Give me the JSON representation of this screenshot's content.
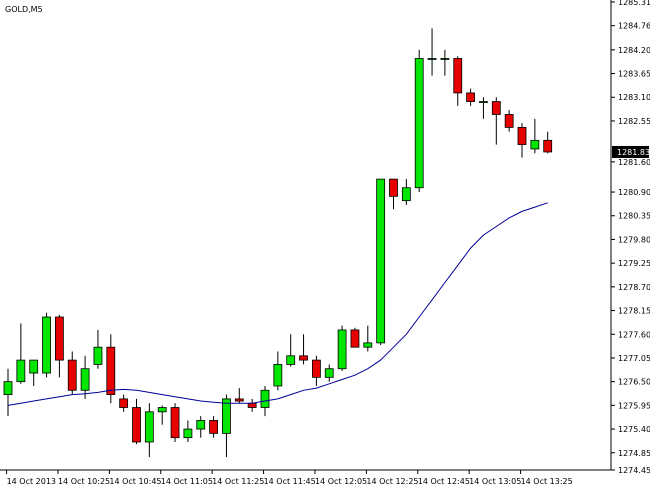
{
  "chart_data": {
    "type": "candlestick",
    "symbol_label": "GOLD,M5",
    "background": "#ffffff",
    "up_color": "#00e600",
    "down_color": "#e60000",
    "wick_color": "#000000",
    "ma_color": "#00009a",
    "ylim": [
      1274.45,
      1285.31
    ],
    "y_ticks": [
      "1285.31",
      "1284.76",
      "1284.20",
      "1283.65",
      "1283.10",
      "1282.55",
      "1281.60",
      "1280.90",
      "1280.35",
      "1279.80",
      "1279.25",
      "1278.70",
      "1278.15",
      "1277.60",
      "1277.05",
      "1276.50",
      "1275.95",
      "1275.40",
      "1274.85",
      "1274.45"
    ],
    "current_price": "1281.83",
    "x_labels": [
      "14 Oct 2013",
      "14 Oct 10:25",
      "14 Oct 10:45",
      "14 Oct 11:05",
      "14 Oct 11:25",
      "14 Oct 11:45",
      "14 Oct 12:05",
      "14 Oct 12:25",
      "14 Oct 12:45",
      "14 Oct 13:05",
      "14 Oct 13:25"
    ],
    "candles": [
      {
        "o": 1276.2,
        "h": 1276.8,
        "l": 1275.7,
        "c": 1276.5
      },
      {
        "o": 1276.5,
        "h": 1277.85,
        "l": 1276.45,
        "c": 1277.0
      },
      {
        "o": 1276.7,
        "h": 1277.0,
        "l": 1276.4,
        "c": 1277.0
      },
      {
        "o": 1276.7,
        "h": 1278.1,
        "l": 1276.6,
        "c": 1278.0
      },
      {
        "o": 1278.0,
        "h": 1278.05,
        "l": 1276.6,
        "c": 1277.0
      },
      {
        "o": 1277.0,
        "h": 1277.2,
        "l": 1276.2,
        "c": 1276.3
      },
      {
        "o": 1276.3,
        "h": 1277.1,
        "l": 1276.1,
        "c": 1276.8
      },
      {
        "o": 1276.9,
        "h": 1277.7,
        "l": 1276.8,
        "c": 1277.3
      },
      {
        "o": 1277.3,
        "h": 1277.6,
        "l": 1276.0,
        "c": 1276.2
      },
      {
        "o": 1276.1,
        "h": 1276.2,
        "l": 1275.8,
        "c": 1275.9
      },
      {
        "o": 1275.9,
        "h": 1276.1,
        "l": 1275.05,
        "c": 1275.1
      },
      {
        "o": 1275.1,
        "h": 1276.0,
        "l": 1274.75,
        "c": 1275.8
      },
      {
        "o": 1275.8,
        "h": 1275.95,
        "l": 1275.5,
        "c": 1275.9
      },
      {
        "o": 1275.9,
        "h": 1276.0,
        "l": 1275.1,
        "c": 1275.2
      },
      {
        "o": 1275.2,
        "h": 1275.6,
        "l": 1275.1,
        "c": 1275.4
      },
      {
        "o": 1275.4,
        "h": 1275.7,
        "l": 1275.2,
        "c": 1275.6
      },
      {
        "o": 1275.6,
        "h": 1275.7,
        "l": 1275.2,
        "c": 1275.3
      },
      {
        "o": 1275.3,
        "h": 1276.2,
        "l": 1274.75,
        "c": 1276.1
      },
      {
        "o": 1276.1,
        "h": 1276.35,
        "l": 1276.0,
        "c": 1276.05
      },
      {
        "o": 1276.0,
        "h": 1276.1,
        "l": 1275.8,
        "c": 1275.9
      },
      {
        "o": 1275.9,
        "h": 1276.4,
        "l": 1275.7,
        "c": 1276.3
      },
      {
        "o": 1276.4,
        "h": 1277.2,
        "l": 1276.3,
        "c": 1276.9
      },
      {
        "o": 1276.9,
        "h": 1277.6,
        "l": 1276.85,
        "c": 1277.1
      },
      {
        "o": 1277.1,
        "h": 1277.6,
        "l": 1276.9,
        "c": 1277.0
      },
      {
        "o": 1277.0,
        "h": 1277.1,
        "l": 1276.4,
        "c": 1276.6
      },
      {
        "o": 1276.6,
        "h": 1276.9,
        "l": 1276.5,
        "c": 1276.8
      },
      {
        "o": 1276.8,
        "h": 1277.8,
        "l": 1276.75,
        "c": 1277.7
      },
      {
        "o": 1277.7,
        "h": 1277.75,
        "l": 1277.3,
        "c": 1277.3
      },
      {
        "o": 1277.3,
        "h": 1277.8,
        "l": 1277.2,
        "c": 1277.4
      },
      {
        "o": 1277.4,
        "h": 1281.2,
        "l": 1277.35,
        "c": 1281.2
      },
      {
        "o": 1281.2,
        "h": 1281.2,
        "l": 1280.5,
        "c": 1280.8
      },
      {
        "o": 1280.7,
        "h": 1281.2,
        "l": 1280.6,
        "c": 1281.0
      },
      {
        "o": 1281.0,
        "h": 1284.2,
        "l": 1280.9,
        "c": 1284.0
      },
      {
        "o": 1284.0,
        "h": 1284.7,
        "l": 1283.6,
        "c": 1284.0
      },
      {
        "o": 1284.0,
        "h": 1284.2,
        "l": 1283.6,
        "c": 1284.0
      },
      {
        "o": 1284.0,
        "h": 1284.05,
        "l": 1282.9,
        "c": 1283.2
      },
      {
        "o": 1283.2,
        "h": 1283.3,
        "l": 1282.9,
        "c": 1283.0
      },
      {
        "o": 1283.0,
        "h": 1283.1,
        "l": 1282.6,
        "c": 1283.0
      },
      {
        "o": 1283.0,
        "h": 1283.1,
        "l": 1282.0,
        "c": 1282.7
      },
      {
        "o": 1282.7,
        "h": 1282.8,
        "l": 1282.3,
        "c": 1282.4
      },
      {
        "o": 1282.4,
        "h": 1282.5,
        "l": 1281.7,
        "c": 1282.0
      },
      {
        "o": 1281.9,
        "h": 1282.6,
        "l": 1281.8,
        "c": 1282.1
      },
      {
        "o": 1282.1,
        "h": 1282.3,
        "l": 1281.8,
        "c": 1281.83
      }
    ],
    "moving_average": [
      1275.95,
      1276.0,
      1276.05,
      1276.1,
      1276.15,
      1276.2,
      1276.22,
      1276.25,
      1276.3,
      1276.32,
      1276.3,
      1276.25,
      1276.2,
      1276.15,
      1276.1,
      1276.05,
      1276.02,
      1276.0,
      1276.0,
      1276.0,
      1276.05,
      1276.1,
      1276.2,
      1276.3,
      1276.35,
      1276.45,
      1276.55,
      1276.65,
      1276.8,
      1277.0,
      1277.3,
      1277.6,
      1278.0,
      1278.4,
      1278.8,
      1279.2,
      1279.6,
      1279.9,
      1280.1,
      1280.3,
      1280.45,
      1280.55,
      1280.65
    ]
  }
}
